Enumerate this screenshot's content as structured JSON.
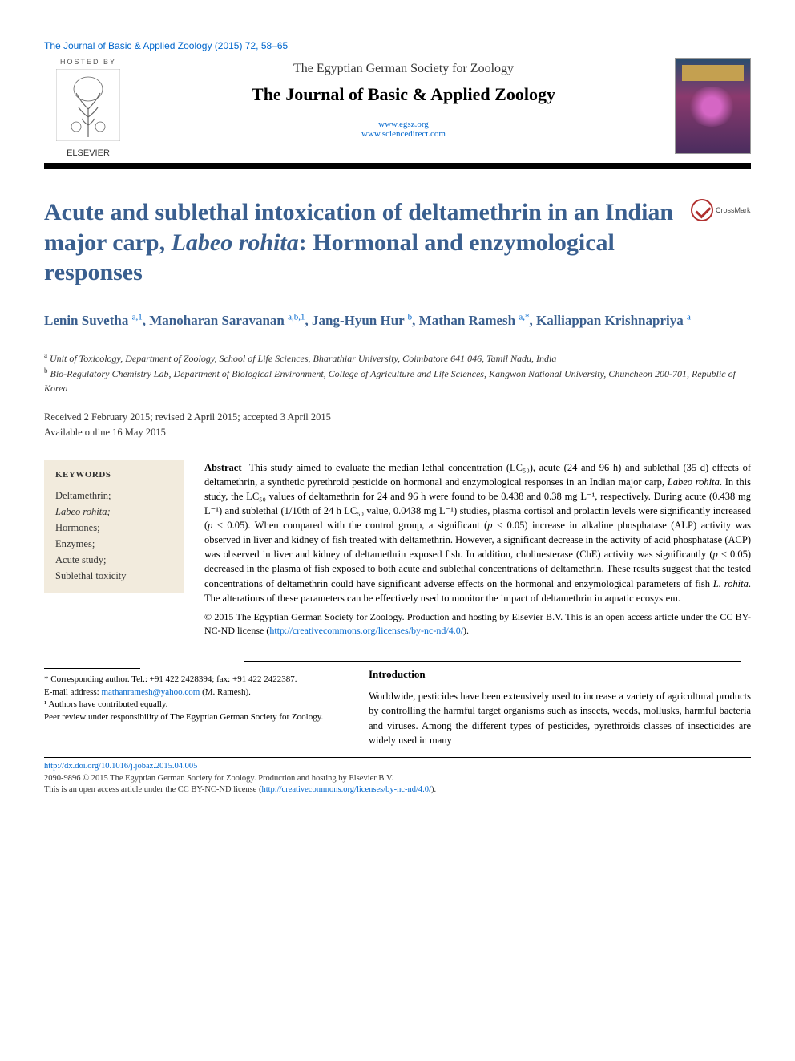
{
  "running_head": "The Journal of Basic & Applied Zoology (2015) 72, 58–65",
  "header": {
    "hosted_label": "HOSTED BY",
    "publisher_name": "ELSEVIER",
    "society": "The Egyptian German Society for Zoology",
    "journal_name": "The Journal of Basic & Applied Zoology",
    "url1": "www.egsz.org",
    "url2": "www.sciencedirect.com"
  },
  "crossmark_label": "CrossMark",
  "title": {
    "part1": "Acute and sublethal intoxication of deltamethrin in an Indian major carp, ",
    "italic": "Labeo rohita",
    "part2": ": Hormonal and enzymological responses"
  },
  "authors_html": "Lenin Suvetha <sup>a,1</sup>, Manoharan Saravanan <sup>a,b,1</sup>, Jang-Hyun Hur <sup>b</sup>, Mathan Ramesh <sup>a,*</sup>, Kalliappan Krishnapriya <sup>a</sup>",
  "affiliations": {
    "a": "Unit of Toxicology, Department of Zoology, School of Life Sciences, Bharathiar University, Coimbatore 641 046, Tamil Nadu, India",
    "b": "Bio-Regulatory Chemistry Lab, Department of Biological Environment, College of Agriculture and Life Sciences, Kangwon National University, Chuncheon 200-701, Republic of Korea"
  },
  "dates": {
    "line1": "Received 2 February 2015; revised 2 April 2015; accepted 3 April 2015",
    "line2": "Available online 16 May 2015"
  },
  "keywords": {
    "heading": "KEYWORDS",
    "items": [
      "Deltamethrin;",
      "Labeo rohita;",
      "Hormones;",
      "Enzymes;",
      "Acute study;",
      "Sublethal toxicity"
    ]
  },
  "abstract": {
    "label": "Abstract",
    "text": "This study aimed to evaluate the median lethal concentration (LC₅₀), acute (24 and 96 h) and sublethal (35 d) effects of deltamethrin, a synthetic pyrethroid pesticide on hormonal and enzymological responses in an Indian major carp, Labeo rohita. In this study, the LC₅₀ values of deltamethrin for 24 and 96 h were found to be 0.438 and 0.38 mg L⁻¹, respectively. During acute (0.438 mg L⁻¹) and sublethal (1/10th of 24 h LC₅₀ value, 0.0438 mg L⁻¹) studies, plasma cortisol and prolactin levels were significantly increased (p < 0.05). When compared with the control group, a significant (p < 0.05) increase in alkaline phosphatase (ALP) activity was observed in liver and kidney of fish treated with deltamethrin. However, a significant decrease in the activity of acid phosphatase (ACP) was observed in liver and kidney of deltamethrin exposed fish. In addition, cholinesterase (ChE) activity was significantly (p < 0.05) decreased in the plasma of fish exposed to both acute and sublethal concentrations of deltamethrin. These results suggest that the tested concentrations of deltamethrin could have significant adverse effects on the hormonal and enzymological parameters of fish L. rohita. The alterations of these parameters can be effectively used to monitor the impact of deltamethrin in aquatic ecosystem.",
    "copyright": "© 2015 The Egyptian German Society for Zoology. Production and hosting by Elsevier B.V. This is an open access article under the CC BY-NC-ND license (",
    "license_url": "http://creativecommons.org/licenses/by-nc-nd/4.0/",
    "close": ")."
  },
  "footnotes": {
    "corresponding": "* Corresponding author. Tel.: +91 422 2428394; fax: +91 422 2422387.",
    "email_label": "E-mail address: ",
    "email": "mathanramesh@yahoo.com",
    "email_author": " (M. Ramesh).",
    "equal": "¹ Authors have contributed equally.",
    "peer": "Peer review under responsibility of The Egyptian German Society for Zoology."
  },
  "intro": {
    "heading": "Introduction",
    "text": "Worldwide, pesticides have been extensively used to increase a variety of agricultural products by controlling the harmful target organisms such as insects, weeds, mollusks, harmful bacteria and viruses. Among the different types of pesticides, pyrethroids classes of insecticides are widely used in many"
  },
  "footer": {
    "doi": "http://dx.doi.org/10.1016/j.jobaz.2015.04.005",
    "issn_line": "2090-9896 © 2015 The Egyptian German Society for Zoology. Production and hosting by Elsevier B.V.",
    "license_line": "This is an open access article under the CC BY-NC-ND license (",
    "license_url": "http://creativecommons.org/licenses/by-nc-nd/4.0/",
    "close": ")."
  },
  "colors": {
    "link": "#0066cc",
    "title": "#3a5f8f",
    "kw_bg": "#f2ebdd"
  }
}
